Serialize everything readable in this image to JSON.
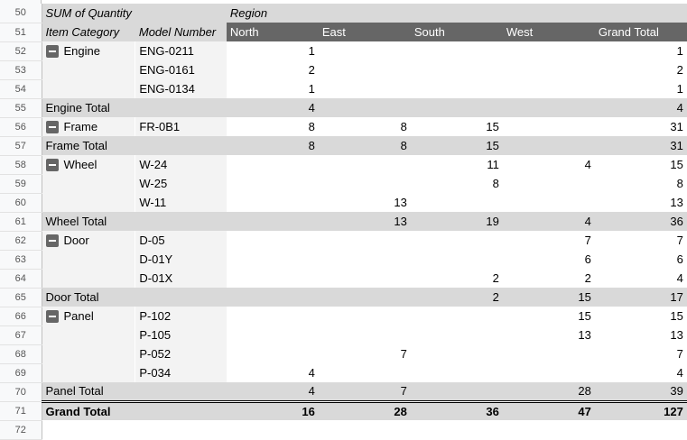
{
  "header": {
    "value_label": "SUM of Quantity",
    "column_field": "Region",
    "row_field_1": "Item Category",
    "row_field_2": "Model Number",
    "columns": [
      "North",
      "East",
      "South",
      "West",
      "Grand Total"
    ]
  },
  "row_numbers": [
    "50",
    "51",
    "52",
    "53",
    "54",
    "55",
    "56",
    "57",
    "58",
    "59",
    "60",
    "61",
    "62",
    "63",
    "64",
    "65",
    "66",
    "67",
    "68",
    "69",
    "70",
    "71",
    "72"
  ],
  "groups": [
    {
      "name": "Engine",
      "total_label": "Engine Total",
      "items": [
        [
          "ENG-0211",
          "1",
          "",
          "",
          "",
          "1"
        ],
        [
          "ENG-0161",
          "2",
          "",
          "",
          "",
          "2"
        ],
        [
          "ENG-0134",
          "1",
          "",
          "",
          "",
          "1"
        ]
      ],
      "totals": [
        "4",
        "",
        "",
        "",
        "4"
      ]
    },
    {
      "name": "Frame",
      "total_label": "Frame Total",
      "items": [
        [
          "FR-0B1",
          "8",
          "8",
          "15",
          "",
          "31"
        ]
      ],
      "totals": [
        "8",
        "8",
        "15",
        "",
        "31"
      ]
    },
    {
      "name": "Wheel",
      "total_label": "Wheel Total",
      "items": [
        [
          "W-24",
          "",
          "",
          "11",
          "4",
          "15"
        ],
        [
          "W-25",
          "",
          "",
          "8",
          "",
          "8"
        ],
        [
          "W-11",
          "",
          "13",
          "",
          "",
          "13"
        ]
      ],
      "totals": [
        "",
        "13",
        "19",
        "4",
        "36"
      ]
    },
    {
      "name": "Door",
      "total_label": "Door Total",
      "items": [
        [
          "D-05",
          "",
          "",
          "",
          "7",
          "7"
        ],
        [
          "D-01Y",
          "",
          "",
          "",
          "6",
          "6"
        ],
        [
          "D-01X",
          "",
          "",
          "2",
          "2",
          "4"
        ]
      ],
      "totals": [
        "",
        "",
        "2",
        "15",
        "17"
      ]
    },
    {
      "name": "Panel",
      "total_label": "Panel Total",
      "items": [
        [
          "P-102",
          "",
          "",
          "",
          "15",
          "15"
        ],
        [
          "P-105",
          "",
          "",
          "",
          "13",
          "13"
        ],
        [
          "P-052",
          "",
          "7",
          "",
          "",
          "7"
        ],
        [
          "P-034",
          "4",
          "",
          "",
          "",
          "4"
        ]
      ],
      "totals": [
        "4",
        "7",
        "",
        "28",
        "39"
      ]
    }
  ],
  "grand_total": {
    "label": "Grand Total",
    "values": [
      "16",
      "28",
      "36",
      "47",
      "127"
    ]
  },
  "icons": {
    "collapse": "minus-square-icon"
  }
}
